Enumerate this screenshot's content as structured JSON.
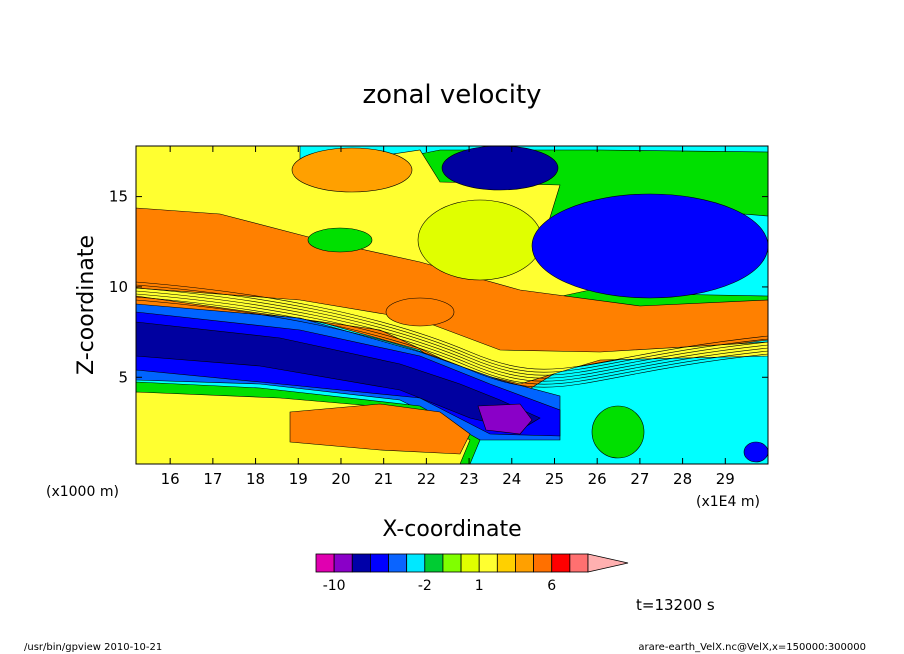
{
  "chart_data": {
    "type": "heatmap",
    "title": "zonal velocity",
    "xlabel": "X-coordinate",
    "ylabel": "Z-coordinate",
    "x_unit_left": "(x1000 m)",
    "x_unit_right": "(x1E4 m)",
    "xlim": [
      15.2,
      30.0
    ],
    "ylim": [
      0.2,
      17.8
    ],
    "x_ticks": [
      16,
      17,
      18,
      19,
      20,
      21,
      22,
      23,
      24,
      25,
      26,
      27,
      28,
      29
    ],
    "y_ticks": [
      5,
      10,
      15
    ],
    "colorbar": {
      "levels": [
        -12,
        -10,
        -8,
        -6,
        -4,
        -3,
        -2,
        -1,
        0,
        1,
        2,
        3,
        4,
        6,
        8,
        10,
        12
      ],
      "labels": [
        "-10",
        "-2",
        "1",
        "6"
      ],
      "label_values": [
        -10,
        -2,
        1,
        6
      ],
      "colors": [
        "#e000b0",
        "#8a00c8",
        "#0000a8",
        "#0000ff",
        "#0a64ff",
        "#00e8ff",
        "#00cc33",
        "#80ff00",
        "#e0ff00",
        "#ffff30",
        "#ffd000",
        "#ffa000",
        "#ff7000",
        "#ff0000",
        "#ff7070",
        "#ffb0b0"
      ]
    },
    "time_label": "t=13200 s",
    "footer_left": "/usr/bin/gpview  2010-10-21",
    "footer_right": "arare-earth_VelX.nc@VelX,x=150000:300000"
  },
  "colors": {
    "orange": "#ff8000",
    "yellow": "#ffff30",
    "light_yellow": "#e0ff00",
    "green": "#00e000",
    "cyan": "#00ffff",
    "light_blue": "#0064ff",
    "blue": "#0000ff",
    "navy": "#0000a0",
    "purple": "#8a00c8",
    "light_orange": "#ffa000"
  }
}
